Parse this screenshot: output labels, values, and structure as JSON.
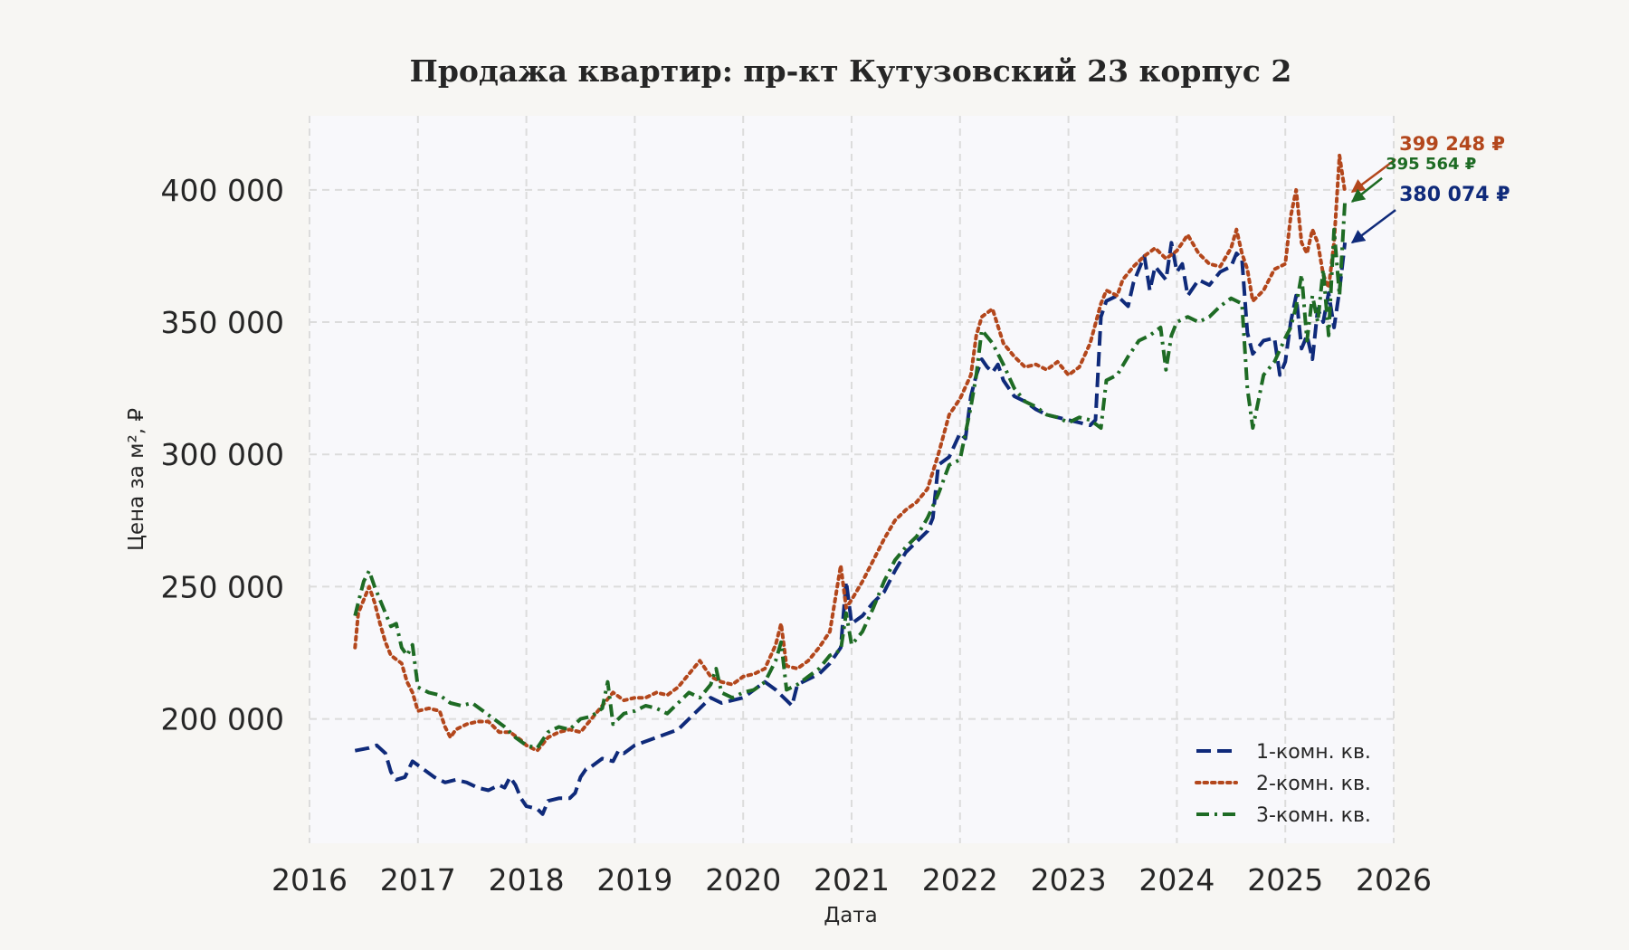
{
  "chart_data": {
    "type": "line",
    "title": "Продажа квартир: пр-кт Кутузовский 23 корпус 2",
    "xlabel": "Дата",
    "ylabel": "Цена за м², ₽",
    "xlim": [
      2016.0,
      2026.0
    ],
    "ylim": [
      153000,
      428000
    ],
    "x_ticks": [
      "2016",
      "2017",
      "2018",
      "2019",
      "2020",
      "2021",
      "2022",
      "2023",
      "2024",
      "2025",
      "2026"
    ],
    "y_ticks": [
      "200 000",
      "250 000",
      "300 000",
      "350 000",
      "400 000"
    ],
    "y_tick_values": [
      200000,
      250000,
      300000,
      350000,
      400000
    ],
    "grid": true,
    "legend_position": "lower-right",
    "series": [
      {
        "name": "1-комн. кв.",
        "color": "#0f2a7a",
        "style": "dashed",
        "x": [
          2016.42,
          2016.55,
          2016.62,
          2016.7,
          2016.75,
          2016.8,
          2016.88,
          2016.95,
          2017.05,
          2017.15,
          2017.25,
          2017.35,
          2017.45,
          2017.55,
          2017.65,
          2017.75,
          2017.8,
          2017.85,
          2017.9,
          2017.95,
          2018.0,
          2018.1,
          2018.15,
          2018.2,
          2018.3,
          2018.4,
          2018.45,
          2018.5,
          2018.55,
          2018.6,
          2018.7,
          2018.8,
          2018.85,
          2018.9,
          2019.0,
          2019.2,
          2019.4,
          2019.5,
          2019.6,
          2019.7,
          2019.8,
          2019.9,
          2020.0,
          2020.1,
          2020.2,
          2020.3,
          2020.4,
          2020.45,
          2020.5,
          2020.6,
          2020.7,
          2020.8,
          2020.9,
          2020.95,
          2021.0,
          2021.1,
          2021.2,
          2021.3,
          2021.4,
          2021.5,
          2021.6,
          2021.7,
          2021.75,
          2021.8,
          2021.9,
          2022.0,
          2022.05,
          2022.1,
          2022.15,
          2022.2,
          2022.25,
          2022.3,
          2022.35,
          2022.4,
          2022.5,
          2022.6,
          2022.7,
          2022.8,
          2022.9,
          2023.0,
          2023.1,
          2023.2,
          2023.25,
          2023.3,
          2023.35,
          2023.45,
          2023.55,
          2023.6,
          2023.7,
          2023.75,
          2023.8,
          2023.9,
          2023.95,
          2024.0,
          2024.05,
          2024.1,
          2024.2,
          2024.3,
          2024.4,
          2024.5,
          2024.55,
          2024.6,
          2024.65,
          2024.7,
          2024.8,
          2024.9,
          2024.95,
          2025.0,
          2025.05,
          2025.1,
          2025.15,
          2025.2,
          2025.25,
          2025.3,
          2025.35,
          2025.4,
          2025.45,
          2025.5,
          2025.55
        ],
        "y": [
          188000,
          189000,
          190000,
          187000,
          180000,
          177000,
          178000,
          184000,
          181000,
          178000,
          176000,
          177000,
          176000,
          174000,
          173000,
          175000,
          174000,
          178000,
          175000,
          170000,
          167000,
          166000,
          164000,
          169000,
          170000,
          170000,
          172000,
          178000,
          181000,
          182000,
          185000,
          184000,
          188000,
          187000,
          190000,
          193000,
          196000,
          200000,
          204000,
          208000,
          206000,
          207000,
          208000,
          211000,
          214000,
          211000,
          207000,
          205000,
          213000,
          215000,
          217000,
          221000,
          227000,
          252000,
          236000,
          239000,
          244000,
          248000,
          256000,
          263000,
          267000,
          271000,
          276000,
          296000,
          299000,
          308000,
          306000,
          322000,
          330000,
          336000,
          333000,
          331000,
          334000,
          328000,
          322000,
          320000,
          317000,
          315000,
          314000,
          313000,
          312000,
          311000,
          313000,
          352000,
          358000,
          360000,
          356000,
          365000,
          375000,
          362000,
          371000,
          366000,
          380000,
          369000,
          372000,
          360000,
          366000,
          364000,
          369000,
          371000,
          376000,
          374000,
          346000,
          338000,
          343000,
          344000,
          330000,
          335000,
          350000,
          360000,
          340000,
          345000,
          336000,
          355000,
          350000,
          361000,
          348000,
          362000,
          380074
        ]
      },
      {
        "name": "2-комн. кв.",
        "color": "#b3471c",
        "style": "dotted",
        "x": [
          2016.42,
          2016.45,
          2016.5,
          2016.55,
          2016.6,
          2016.65,
          2016.7,
          2016.75,
          2016.85,
          2016.9,
          2016.95,
          2017.0,
          2017.1,
          2017.2,
          2017.25,
          2017.3,
          2017.35,
          2017.45,
          2017.55,
          2017.65,
          2017.75,
          2017.85,
          2017.95,
          2018.0,
          2018.1,
          2018.2,
          2018.3,
          2018.4,
          2018.5,
          2018.6,
          2018.7,
          2018.8,
          2018.9,
          2019.0,
          2019.1,
          2019.2,
          2019.3,
          2019.4,
          2019.5,
          2019.6,
          2019.7,
          2019.8,
          2019.9,
          2020.0,
          2020.1,
          2020.2,
          2020.3,
          2020.35,
          2020.4,
          2020.5,
          2020.6,
          2020.7,
          2020.8,
          2020.9,
          2020.95,
          2021.0,
          2021.1,
          2021.2,
          2021.3,
          2021.4,
          2021.5,
          2021.6,
          2021.7,
          2021.8,
          2021.9,
          2022.0,
          2022.1,
          2022.15,
          2022.2,
          2022.3,
          2022.4,
          2022.5,
          2022.6,
          2022.7,
          2022.8,
          2022.9,
          2023.0,
          2023.1,
          2023.2,
          2023.3,
          2023.35,
          2023.45,
          2023.5,
          2023.6,
          2023.7,
          2023.8,
          2023.9,
          2024.0,
          2024.1,
          2024.2,
          2024.3,
          2024.4,
          2024.5,
          2024.55,
          2024.6,
          2024.65,
          2024.7,
          2024.8,
          2024.9,
          2025.0,
          2025.05,
          2025.1,
          2025.15,
          2025.2,
          2025.25,
          2025.3,
          2025.35,
          2025.4,
          2025.45,
          2025.5,
          2025.55
        ],
        "y": [
          227000,
          240000,
          245000,
          250000,
          244000,
          236000,
          229000,
          224000,
          221000,
          214000,
          210000,
          203000,
          204000,
          203000,
          197000,
          193000,
          196000,
          198000,
          199000,
          199000,
          195000,
          195000,
          192000,
          190000,
          188000,
          193000,
          195000,
          196000,
          195000,
          200000,
          205000,
          210000,
          207000,
          208000,
          208000,
          210000,
          209000,
          212000,
          217000,
          222000,
          216000,
          214000,
          213000,
          216000,
          217000,
          219000,
          228000,
          236000,
          220000,
          219000,
          222000,
          227000,
          233000,
          258000,
          242000,
          245000,
          252000,
          260000,
          268000,
          275000,
          279000,
          282000,
          287000,
          300000,
          315000,
          321000,
          330000,
          345000,
          352000,
          355000,
          342000,
          337000,
          333000,
          334000,
          332000,
          335000,
          330000,
          333000,
          342000,
          357000,
          362000,
          360000,
          366000,
          371000,
          375000,
          378000,
          374000,
          377000,
          383000,
          376000,
          372000,
          371000,
          378000,
          385000,
          376000,
          370000,
          358000,
          362000,
          370000,
          372000,
          390000,
          400000,
          380000,
          376000,
          385000,
          380000,
          368000,
          363000,
          380000,
          413000,
          399248
        ]
      },
      {
        "name": "3-комн. кв.",
        "color": "#1e6b24",
        "style": "dashdot",
        "x": [
          2016.42,
          2016.45,
          2016.5,
          2016.55,
          2016.6,
          2016.65,
          2016.7,
          2016.75,
          2016.8,
          2016.85,
          2016.9,
          2016.95,
          2017.0,
          2017.1,
          2017.2,
          2017.3,
          2017.4,
          2017.5,
          2017.6,
          2017.7,
          2017.8,
          2017.9,
          2018.0,
          2018.1,
          2018.2,
          2018.3,
          2018.4,
          2018.5,
          2018.6,
          2018.7,
          2018.75,
          2018.8,
          2018.9,
          2019.0,
          2019.1,
          2019.2,
          2019.3,
          2019.4,
          2019.5,
          2019.6,
          2019.7,
          2019.75,
          2019.8,
          2019.9,
          2020.0,
          2020.1,
          2020.2,
          2020.3,
          2020.35,
          2020.4,
          2020.5,
          2020.6,
          2020.7,
          2020.8,
          2020.9,
          2020.95,
          2021.0,
          2021.1,
          2021.2,
          2021.3,
          2021.4,
          2021.5,
          2021.6,
          2021.7,
          2021.8,
          2021.9,
          2022.0,
          2022.1,
          2022.15,
          2022.2,
          2022.3,
          2022.4,
          2022.5,
          2022.6,
          2022.7,
          2022.8,
          2022.9,
          2023.0,
          2023.1,
          2023.2,
          2023.3,
          2023.35,
          2023.45,
          2023.55,
          2023.65,
          2023.75,
          2023.85,
          2023.9,
          2023.95,
          2024.0,
          2024.1,
          2024.2,
          2024.3,
          2024.4,
          2024.5,
          2024.6,
          2024.65,
          2024.7,
          2024.75,
          2024.8,
          2024.9,
          2025.0,
          2025.05,
          2025.1,
          2025.15,
          2025.2,
          2025.25,
          2025.3,
          2025.35,
          2025.4,
          2025.45,
          2025.5,
          2025.55
        ],
        "y": [
          239000,
          244000,
          252000,
          256000,
          250000,
          245000,
          240000,
          235000,
          236000,
          227000,
          224000,
          228000,
          212000,
          210000,
          209000,
          206000,
          205000,
          206000,
          203000,
          200000,
          197000,
          193000,
          190000,
          189000,
          195000,
          197000,
          196000,
          200000,
          201000,
          204000,
          214000,
          198000,
          202000,
          203000,
          205000,
          204000,
          202000,
          206000,
          210000,
          208000,
          213000,
          219000,
          210000,
          208000,
          210000,
          211000,
          214000,
          222000,
          229000,
          211000,
          213000,
          216000,
          219000,
          224000,
          226000,
          240000,
          228000,
          233000,
          242000,
          252000,
          260000,
          265000,
          269000,
          276000,
          285000,
          296000,
          298000,
          318000,
          330000,
          347000,
          342000,
          334000,
          325000,
          320000,
          318000,
          315000,
          314000,
          312000,
          314000,
          313000,
          310000,
          328000,
          330000,
          337000,
          343000,
          345000,
          348000,
          332000,
          345000,
          350000,
          352000,
          350000,
          352000,
          356000,
          359000,
          357000,
          325000,
          310000,
          320000,
          330000,
          335000,
          344000,
          348000,
          356000,
          368000,
          343000,
          360000,
          350000,
          370000,
          345000,
          385000,
          360000,
          395564
        ]
      }
    ],
    "annotations": [
      {
        "text": "399 248 ₽",
        "series": 1,
        "color": "#b3471c"
      },
      {
        "text": "395 564 ₽",
        "series": 2,
        "color": "#1e6b24"
      },
      {
        "text": "380 074 ₽",
        "series": 0,
        "color": "#0f2a7a"
      }
    ]
  }
}
